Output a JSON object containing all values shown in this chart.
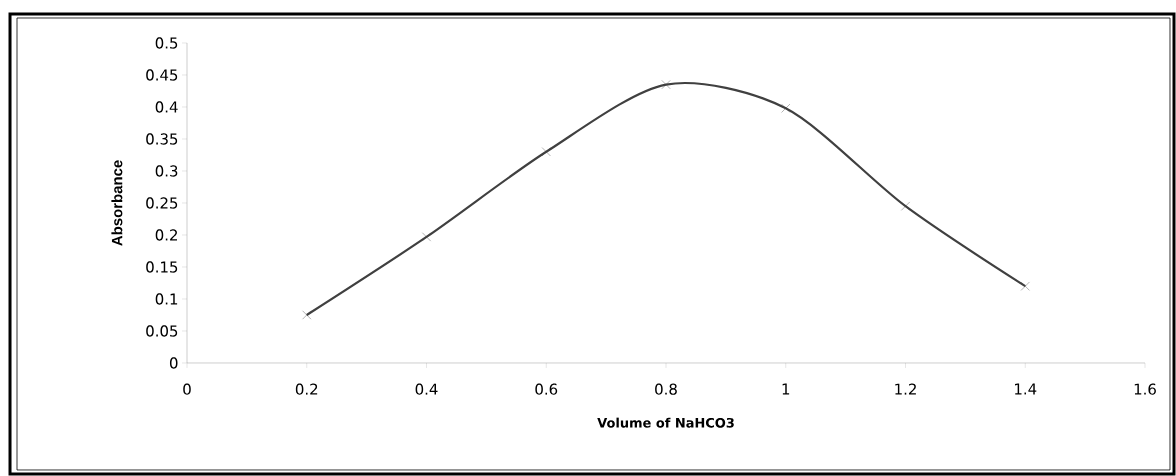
{
  "chart_data": {
    "type": "line",
    "xlabel": "Volume of NaHCO3",
    "ylabel": "Absorbance",
    "x": [
      0.2,
      0.4,
      0.6,
      0.8,
      1.0,
      1.2,
      1.4
    ],
    "series": [
      {
        "color": "#404040",
        "values": [
          0.075,
          0.197,
          0.33,
          0.435,
          0.398,
          0.245,
          0.12
        ]
      }
    ],
    "xlim": [
      0,
      1.6
    ],
    "xticks": [
      0,
      0.2,
      0.4,
      0.6,
      0.8,
      1,
      1.2,
      1.4,
      1.6
    ],
    "ylim": [
      0,
      0.5
    ],
    "yticks": [
      0,
      0.05,
      0.1,
      0.15,
      0.2,
      0.25,
      0.3,
      0.35,
      0.4,
      0.45,
      0.5
    ],
    "grid": false,
    "marker": "cross",
    "line_style": "solid"
  }
}
